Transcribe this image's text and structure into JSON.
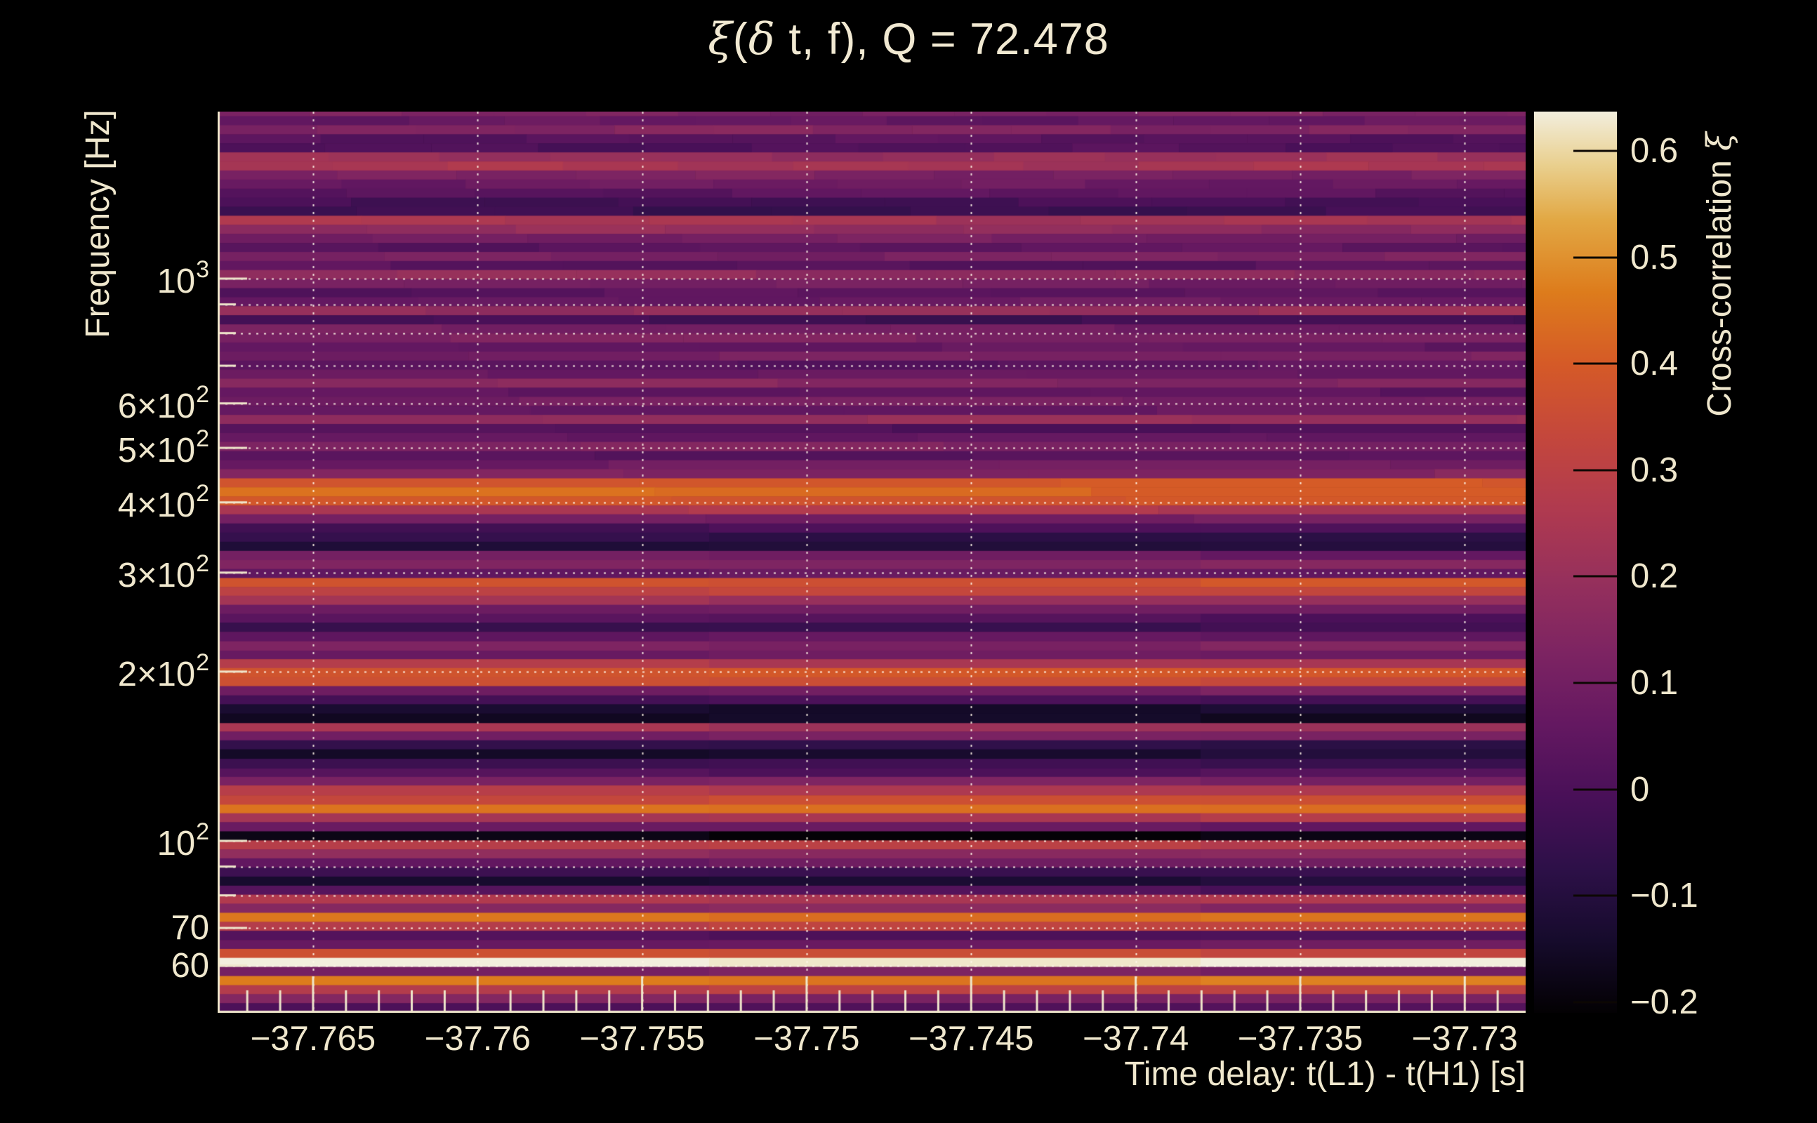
{
  "figure": {
    "background_color": "#000000",
    "text_color": "#efe7cd",
    "gridline_color": "#fff6e8",
    "tick_color": "#efe6cb",
    "colorbar_tick_color": "#0c0703"
  },
  "chart_data": {
    "type": "heatmap",
    "title_parts": [
      {
        "text": "ξ",
        "greek": true
      },
      {
        "text": "(",
        "greek": false
      },
      {
        "text": "δ",
        "greek": true
      },
      {
        "text": " t, f), Q = 72.478",
        "greek": false
      }
    ],
    "title_plain": "ξ(δ t, f), Q = 72.478",
    "q": 72.478,
    "xlabel": "Time delay: t(L1) - t(H1) [s]",
    "ylabel": "Frequency [Hz]",
    "x_range": [
      -37.7679,
      -37.72815
    ],
    "x_ticks": [
      -37.765,
      -37.76,
      -37.755,
      -37.75,
      -37.745,
      -37.74,
      -37.735,
      -37.73
    ],
    "x_tick_labels": [
      "−37.765",
      "−37.76",
      "−37.755",
      "−37.75",
      "−37.745",
      "−37.74",
      "−37.735",
      "−37.73"
    ],
    "x_minor_tick_step": 0.001,
    "y_scale": "log",
    "y_range": [
      49.45,
      1982
    ],
    "y_ticks": [
      {
        "v": 1000,
        "base": "10",
        "sup": "3"
      },
      {
        "v": 600,
        "base": "6×10",
        "sup": "2"
      },
      {
        "v": 500,
        "base": "5×10",
        "sup": "2"
      },
      {
        "v": 400,
        "base": "4×10",
        "sup": "2"
      },
      {
        "v": 300,
        "base": "3×10",
        "sup": "2"
      },
      {
        "v": 200,
        "base": "2×10",
        "sup": "2"
      },
      {
        "v": 100,
        "base": "10",
        "sup": "2"
      },
      {
        "v": 70,
        "base": "70",
        "sup": ""
      },
      {
        "v": 60,
        "base": "60",
        "sup": ""
      }
    ],
    "y_minor_ticks": [
      900,
      800,
      700,
      90,
      80
    ],
    "y_gridlines": [
      1000,
      900,
      800,
      700,
      600,
      500,
      400,
      300,
      200,
      100,
      90,
      80,
      70,
      60
    ],
    "grid": true,
    "colorbar": {
      "label_parts": [
        {
          "text": "Cross-correlation ",
          "greek": false
        },
        {
          "text": "ξ",
          "greek": true
        }
      ],
      "label_plain": "Cross-correlation ξ",
      "range": [
        -0.21,
        0.637
      ],
      "ticks": [
        {
          "v": 0.6,
          "label": "0.6"
        },
        {
          "v": 0.5,
          "label": "0.5"
        },
        {
          "v": 0.4,
          "label": "0.4"
        },
        {
          "v": 0.3,
          "label": "0.3"
        },
        {
          "v": 0.2,
          "label": "0.2"
        },
        {
          "v": 0.1,
          "label": "0.1"
        },
        {
          "v": 0.0,
          "label": "0"
        },
        {
          "v": -0.1,
          "label": "−0.1"
        },
        {
          "v": -0.2,
          "label": "−0.2"
        }
      ],
      "position": "right"
    },
    "colormap": {
      "name": "inferno-like",
      "stops": [
        [
          0.0,
          "#030103"
        ],
        [
          0.08,
          "#160b2c"
        ],
        [
          0.16,
          "#2d1048"
        ],
        [
          0.24,
          "#491058"
        ],
        [
          0.32,
          "#641861"
        ],
        [
          0.4,
          "#7d2462"
        ],
        [
          0.48,
          "#96305c"
        ],
        [
          0.56,
          "#b03a4f"
        ],
        [
          0.64,
          "#c4473c"
        ],
        [
          0.72,
          "#d55a27"
        ],
        [
          0.8,
          "#dd7c1c"
        ],
        [
          0.88,
          "#e2a844"
        ],
        [
          0.94,
          "#e9cf8d"
        ],
        [
          1.0,
          "#f2eedd"
        ]
      ]
    },
    "heatmap": {
      "note": "Cross-correlation is nearly constant in time delay; rows are log-spaced frequency bands (Q-transform rows).",
      "f": [
        1982,
        1910,
        1840,
        1773,
        1709,
        1646,
        1586,
        1529,
        1473,
        1419,
        1368,
        1318,
        1270,
        1224,
        1179,
        1136,
        1095,
        1055,
        1017,
        980,
        944,
        910,
        877,
        845,
        814,
        784,
        756,
        728,
        702,
        676,
        652,
        628,
        605,
        583,
        562,
        541,
        522,
        503,
        484,
        467,
        450,
        433,
        418,
        402,
        388,
        374,
        360,
        347,
        334,
        322,
        310,
        299,
        288,
        278,
        268,
        258,
        249,
        240,
        231,
        222,
        214,
        207,
        199,
        192,
        185,
        178,
        172,
        165,
        159,
        154,
        148,
        143,
        137,
        132,
        128,
        123,
        118,
        114,
        110,
        106,
        102,
        98.4,
        94.8,
        91.4,
        88.0,
        84.8,
        81.7,
        78.8,
        75.9,
        73.1,
        70.5,
        67.9,
        65.4,
        63.1,
        60.8,
        58.6,
        56.4,
        54.4,
        52.4,
        50.5,
        48.7
      ],
      "xi": [
        0.12,
        0.06,
        0.14,
        0.03,
        0.01,
        0.2,
        0.24,
        0.12,
        0.08,
        0.04,
        -0.02,
        -0.04,
        0.24,
        0.18,
        0.1,
        0.04,
        0.12,
        0.03,
        0.18,
        0.1,
        0.03,
        0.07,
        0.2,
        -0.02,
        0.1,
        0.12,
        0.05,
        0.11,
        0.04,
        0.08,
        0.15,
        0.04,
        0.1,
        0.06,
        0.2,
        0.02,
        0.06,
        0.12,
        0.02,
        0.09,
        0.14,
        0.4,
        0.43,
        0.38,
        0.24,
        0.1,
        0.0,
        -0.06,
        -0.1,
        0.08,
        0.13,
        0.05,
        0.38,
        0.33,
        0.22,
        0.09,
        0.01,
        -0.05,
        0.05,
        0.14,
        0.09,
        0.26,
        0.38,
        0.34,
        0.1,
        -0.01,
        -0.12,
        -0.15,
        0.22,
        0.1,
        -0.08,
        -0.13,
        -0.03,
        0.03,
        0.12,
        0.26,
        0.34,
        0.44,
        0.26,
        0.08,
        -0.18,
        0.28,
        0.16,
        0.07,
        -0.04,
        -0.11,
        0.02,
        0.26,
        0.14,
        0.44,
        0.3,
        0.02,
        0.09,
        0.35,
        0.63,
        0.1,
        0.46,
        0.3,
        0.14,
        0.02,
        -0.1
      ]
    }
  }
}
